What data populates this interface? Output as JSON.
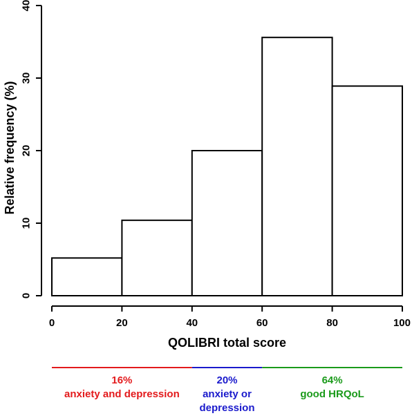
{
  "chart_data": {
    "type": "bar",
    "subtype": "histogram",
    "title": "",
    "xlabel": "QOLIBRI total score",
    "ylabel": "Relative frequency (%)",
    "xlim": [
      0,
      100
    ],
    "ylim": [
      0,
      40
    ],
    "xticks": [
      "0",
      "20",
      "40",
      "60",
      "80",
      "100"
    ],
    "yticks": [
      "0",
      "10",
      "20",
      "30",
      "40"
    ],
    "bins": [
      {
        "start": 0,
        "end": 20,
        "value": 5.2
      },
      {
        "start": 20,
        "end": 40,
        "value": 10.4
      },
      {
        "start": 40,
        "end": 60,
        "value": 20.0
      },
      {
        "start": 60,
        "end": 80,
        "value": 35.6
      },
      {
        "start": 80,
        "end": 100,
        "value": 28.9
      }
    ],
    "bar_fill": "#ffffff",
    "bar_stroke": "#000000",
    "grid": false,
    "groups": [
      {
        "start": 0,
        "end": 40,
        "color": "#e31a1c",
        "lines": [
          "16%",
          "anxiety and depression"
        ]
      },
      {
        "start": 40,
        "end": 60,
        "color": "#1a1acc",
        "lines": [
          "20%",
          "anxiety or",
          "depression"
        ]
      },
      {
        "start": 60,
        "end": 100,
        "color": "#1a9a1a",
        "lines": [
          "64%",
          "good HRQoL"
        ]
      }
    ]
  }
}
